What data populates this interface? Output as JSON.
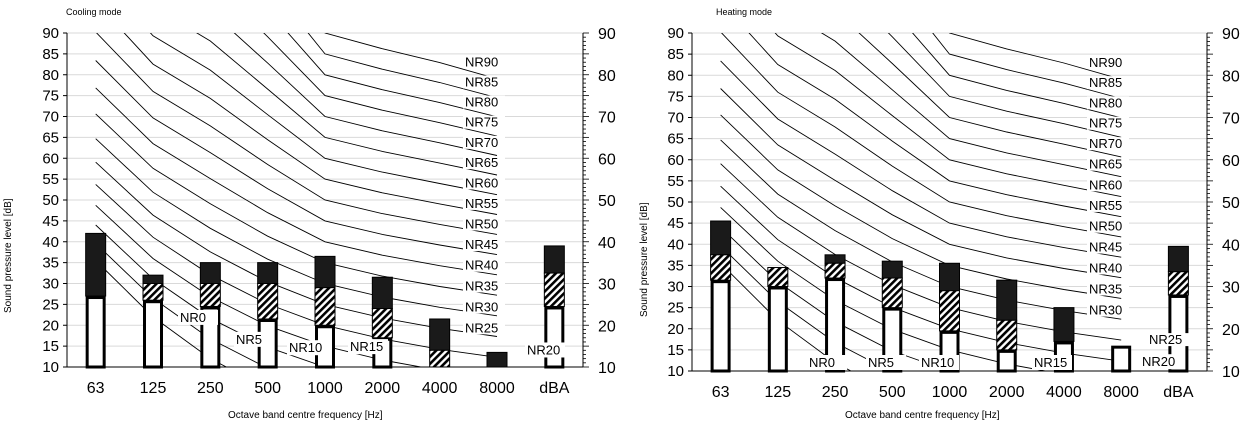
{
  "colors": {
    "ink": "#000000",
    "grid": "#d9d9d9",
    "bar_fill": "#ffffff",
    "top_band": "#1a1a1a"
  },
  "chart_data": [
    {
      "type": "bar",
      "title": "Cooling mode",
      "xlabel": "Octave band centre frequency [Hz]",
      "ylabel": "Sound pressure level [dB]",
      "categories": [
        "63",
        "125",
        "250",
        "500",
        "1000",
        "2000",
        "4000",
        "8000",
        "dBA"
      ],
      "ylim": [
        10,
        90
      ],
      "yticks": [
        10,
        15,
        20,
        25,
        30,
        35,
        40,
        45,
        50,
        55,
        60,
        65,
        70,
        75,
        80,
        85,
        90
      ],
      "y2ticks": [
        10,
        20,
        30,
        40,
        50,
        60,
        70,
        80,
        90
      ],
      "grid": true,
      "series": [
        {
          "pattern": "open",
          "values": [
            27,
            26,
            24.5,
            21.5,
            20,
            17,
            10,
            10,
            24.5
          ]
        },
        {
          "pattern": "hatched",
          "values": [
            27,
            30,
            30,
            30,
            29,
            24,
            14,
            10,
            32.5
          ]
        },
        {
          "pattern": "solid",
          "values": [
            42,
            32,
            35,
            35,
            36.5,
            31.5,
            21.5,
            13.5,
            39
          ]
        }
      ],
      "nr_curves": [
        "NR0",
        "NR5",
        "NR10",
        "NR15",
        "NR20",
        "NR25",
        "NR30",
        "NR35",
        "NR40",
        "NR45",
        "NR50",
        "NR55",
        "NR60",
        "NR65",
        "NR70",
        "NR75",
        "NR80",
        "NR85",
        "NR90"
      ]
    },
    {
      "type": "bar",
      "title": "Heating mode",
      "xlabel": "Octave band centre frequency [Hz]",
      "ylabel": "Sound pressure level [dB]",
      "categories": [
        "63",
        "125",
        "250",
        "500",
        "1000",
        "2000",
        "4000",
        "8000",
        "dBA"
      ],
      "ylim": [
        10,
        90
      ],
      "yticks": [
        10,
        15,
        20,
        25,
        30,
        35,
        40,
        45,
        50,
        55,
        60,
        65,
        70,
        75,
        80,
        85,
        90
      ],
      "y2ticks": [
        10,
        20,
        30,
        40,
        50,
        60,
        70,
        80,
        90
      ],
      "grid": true,
      "series": [
        {
          "pattern": "open",
          "values": [
            31.5,
            30,
            32,
            25,
            19.5,
            15,
            17,
            16,
            28
          ]
        },
        {
          "pattern": "hatched",
          "values": [
            37.5,
            34.5,
            35.5,
            32,
            29,
            22,
            17,
            16,
            33.5
          ]
        },
        {
          "pattern": "solid",
          "values": [
            45.5,
            34.5,
            37.5,
            36,
            35.5,
            31.5,
            25,
            16,
            39.5
          ]
        }
      ],
      "nr_curves": [
        "NR0",
        "NR5",
        "NR10",
        "NR15",
        "NR20",
        "NR25",
        "NR30",
        "NR35",
        "NR40",
        "NR45",
        "NR50",
        "NR55",
        "NR60",
        "NR65",
        "NR70",
        "NR75",
        "NR80",
        "NR85",
        "NR90"
      ]
    }
  ]
}
